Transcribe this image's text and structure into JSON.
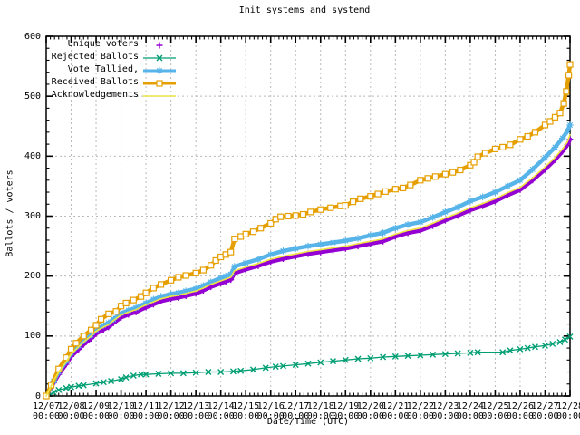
{
  "title": "Init systems and systemd",
  "y_axis": {
    "label": "Ballots / voters",
    "ticks": [
      0,
      100,
      200,
      300,
      400,
      500,
      600
    ],
    "min": 0,
    "max": 600
  },
  "x_axis": {
    "label": "Date/Time (UTC)",
    "tick_time_label": "00:00",
    "tick_dates": [
      "12/07",
      "12/08",
      "12/09",
      "12/10",
      "12/11",
      "12/12",
      "12/13",
      "12/14",
      "12/15",
      "12/16",
      "12/17",
      "12/18",
      "12/19",
      "12/20",
      "12/21",
      "12/22",
      "12/23",
      "12/24",
      "12/25",
      "12/26",
      "12/27",
      "12/28"
    ]
  },
  "colors": {
    "grid": "#b9b9b9",
    "border": "#000000",
    "background": "#ffffff"
  },
  "chart_data": {
    "type": "line",
    "title": "Init systems and systemd",
    "xlabel": "Date/Time (UTC)",
    "ylabel": "Ballots / voters",
    "ylim": [
      0,
      600
    ],
    "x_unit": "days since 12/07 00:00 UTC",
    "x_range_days": [
      0,
      21
    ],
    "grid": true,
    "legend_position": "top-left",
    "series": [
      {
        "name": "Unique voters",
        "color": "#9400d3",
        "marker": "plus",
        "legend_style": "points",
        "line_width": 4.5,
        "points": [
          [
            0,
            0
          ],
          [
            0.3,
            22
          ],
          [
            0.5,
            36
          ],
          [
            0.8,
            53
          ],
          [
            1,
            66
          ],
          [
            1.3,
            78
          ],
          [
            1.5,
            86
          ],
          [
            1.8,
            96
          ],
          [
            2,
            104
          ],
          [
            2.3,
            111
          ],
          [
            2.5,
            115
          ],
          [
            2.7,
            122
          ],
          [
            3,
            131
          ],
          [
            3.3,
            136
          ],
          [
            3.6,
            140
          ],
          [
            4,
            148
          ],
          [
            4.3,
            153
          ],
          [
            4.6,
            158
          ],
          [
            5,
            162
          ],
          [
            5.3,
            164
          ],
          [
            5.6,
            167
          ],
          [
            6,
            171
          ],
          [
            6.3,
            176
          ],
          [
            6.6,
            182
          ],
          [
            7,
            188
          ],
          [
            7.2,
            191
          ],
          [
            7.4,
            194
          ],
          [
            7.55,
            205
          ],
          [
            8,
            211
          ],
          [
            8.5,
            217
          ],
          [
            9,
            224
          ],
          [
            9.5,
            229
          ],
          [
            10,
            233
          ],
          [
            10.5,
            237
          ],
          [
            11,
            240
          ],
          [
            11.5,
            243
          ],
          [
            12,
            246
          ],
          [
            12.5,
            250
          ],
          [
            13,
            254
          ],
          [
            13.5,
            258
          ],
          [
            14,
            266
          ],
          [
            14.5,
            272
          ],
          [
            15,
            276
          ],
          [
            15.5,
            284
          ],
          [
            16,
            293
          ],
          [
            16.5,
            301
          ],
          [
            17,
            310
          ],
          [
            17.5,
            317
          ],
          [
            18,
            325
          ],
          [
            18.5,
            335
          ],
          [
            19,
            344
          ],
          [
            19.5,
            360
          ],
          [
            20,
            378
          ],
          [
            20.4,
            394
          ],
          [
            20.7,
            408
          ],
          [
            20.9,
            419
          ],
          [
            21,
            428
          ]
        ]
      },
      {
        "name": "Rejected Ballots",
        "color": "#009e73",
        "marker": "cross",
        "legend_style": "linespoints",
        "line_width": 1.3,
        "points": [
          [
            0,
            0
          ],
          [
            0.3,
            6
          ],
          [
            0.5,
            10
          ],
          [
            0.8,
            13
          ],
          [
            1,
            15
          ],
          [
            1.3,
            17
          ],
          [
            1.5,
            18
          ],
          [
            2,
            21
          ],
          [
            2.3,
            23
          ],
          [
            2.6,
            25
          ],
          [
            3,
            28
          ],
          [
            3.2,
            31
          ],
          [
            3.5,
            34
          ],
          [
            3.8,
            36
          ],
          [
            4,
            36
          ],
          [
            4.5,
            37
          ],
          [
            5,
            38
          ],
          [
            5.5,
            38
          ],
          [
            6,
            39
          ],
          [
            6.5,
            40
          ],
          [
            7,
            40
          ],
          [
            7.5,
            41
          ],
          [
            7.8,
            42
          ],
          [
            8.3,
            44
          ],
          [
            8.8,
            47
          ],
          [
            9.2,
            49
          ],
          [
            9.5,
            50
          ],
          [
            10,
            52
          ],
          [
            10.5,
            54
          ],
          [
            11,
            56
          ],
          [
            11.5,
            58
          ],
          [
            12,
            60
          ],
          [
            12.5,
            62
          ],
          [
            13,
            63
          ],
          [
            13.5,
            65
          ],
          [
            14,
            66
          ],
          [
            14.5,
            67
          ],
          [
            15,
            68
          ],
          [
            15.5,
            69
          ],
          [
            16,
            70
          ],
          [
            16.5,
            71
          ],
          [
            17,
            72
          ],
          [
            17.3,
            73
          ],
          [
            18.3,
            73
          ],
          [
            18.6,
            76
          ],
          [
            19,
            78
          ],
          [
            19.3,
            80
          ],
          [
            19.6,
            82
          ],
          [
            20,
            84
          ],
          [
            20.3,
            87
          ],
          [
            20.6,
            90
          ],
          [
            20.8,
            94
          ],
          [
            21,
            99
          ]
        ]
      },
      {
        "name": "Vote Tallied,",
        "color": "#56b4e9",
        "marker": "asterisk",
        "legend_style": "linespoints",
        "line_width": 4.5,
        "points": [
          [
            0,
            0
          ],
          [
            0.3,
            25
          ],
          [
            0.5,
            40
          ],
          [
            0.8,
            58
          ],
          [
            1,
            72
          ],
          [
            1.3,
            84
          ],
          [
            1.5,
            92
          ],
          [
            1.8,
            102
          ],
          [
            2,
            110
          ],
          [
            2.3,
            118
          ],
          [
            2.5,
            122
          ],
          [
            2.7,
            128
          ],
          [
            3,
            138
          ],
          [
            3.3,
            143
          ],
          [
            3.6,
            147
          ],
          [
            4,
            155
          ],
          [
            4.3,
            161
          ],
          [
            4.6,
            166
          ],
          [
            5,
            170
          ],
          [
            5.3,
            172
          ],
          [
            5.6,
            175
          ],
          [
            6,
            179
          ],
          [
            6.3,
            184
          ],
          [
            6.6,
            190
          ],
          [
            7,
            197
          ],
          [
            7.2,
            200
          ],
          [
            7.4,
            203
          ],
          [
            7.55,
            216
          ],
          [
            8,
            222
          ],
          [
            8.5,
            228
          ],
          [
            9,
            236
          ],
          [
            9.5,
            242
          ],
          [
            10,
            246
          ],
          [
            10.5,
            250
          ],
          [
            11,
            253
          ],
          [
            11.5,
            256
          ],
          [
            12,
            259
          ],
          [
            12.5,
            263
          ],
          [
            13,
            268
          ],
          [
            13.5,
            272
          ],
          [
            14,
            280
          ],
          [
            14.5,
            286
          ],
          [
            15,
            290
          ],
          [
            15.5,
            298
          ],
          [
            16,
            307
          ],
          [
            16.5,
            315
          ],
          [
            17,
            325
          ],
          [
            17.5,
            332
          ],
          [
            18,
            340
          ],
          [
            18.5,
            350
          ],
          [
            19,
            360
          ],
          [
            19.5,
            378
          ],
          [
            20,
            398
          ],
          [
            20.4,
            415
          ],
          [
            20.7,
            430
          ],
          [
            20.9,
            442
          ],
          [
            21,
            452
          ]
        ]
      },
      {
        "name": "Received Ballots",
        "color": "#e69f00",
        "marker": "square",
        "legend_style": "linespoints",
        "line_width": 4.5,
        "points": [
          [
            0,
            0
          ],
          [
            0.2,
            18
          ],
          [
            0.5,
            45
          ],
          [
            0.8,
            64
          ],
          [
            1,
            78
          ],
          [
            1.2,
            88
          ],
          [
            1.5,
            100
          ],
          [
            1.8,
            110
          ],
          [
            2,
            118
          ],
          [
            2.2,
            128
          ],
          [
            2.5,
            137
          ],
          [
            2.8,
            141
          ],
          [
            3,
            150
          ],
          [
            3.2,
            155
          ],
          [
            3.5,
            160
          ],
          [
            3.8,
            166
          ],
          [
            4,
            172
          ],
          [
            4.3,
            180
          ],
          [
            4.6,
            186
          ],
          [
            5,
            193
          ],
          [
            5.3,
            198
          ],
          [
            5.6,
            201
          ],
          [
            6,
            205
          ],
          [
            6.3,
            210
          ],
          [
            6.6,
            218
          ],
          [
            6.8,
            226
          ],
          [
            7,
            232
          ],
          [
            7.2,
            236
          ],
          [
            7.4,
            240
          ],
          [
            7.55,
            262
          ],
          [
            7.8,
            266
          ],
          [
            8,
            270
          ],
          [
            8.3,
            274
          ],
          [
            8.6,
            280
          ],
          [
            9,
            288
          ],
          [
            9.2,
            295
          ],
          [
            9.4,
            299
          ],
          [
            9.7,
            300
          ],
          [
            10,
            301
          ],
          [
            10.3,
            303
          ],
          [
            10.6,
            307
          ],
          [
            11,
            311
          ],
          [
            11.4,
            314
          ],
          [
            11.8,
            317
          ],
          [
            12,
            318
          ],
          [
            12.3,
            324
          ],
          [
            12.6,
            329
          ],
          [
            13,
            333
          ],
          [
            13.3,
            337
          ],
          [
            13.6,
            341
          ],
          [
            14,
            345
          ],
          [
            14.3,
            347
          ],
          [
            14.6,
            352
          ],
          [
            15,
            360
          ],
          [
            15.3,
            363
          ],
          [
            15.6,
            366
          ],
          [
            16,
            370
          ],
          [
            16.3,
            373
          ],
          [
            16.6,
            377
          ],
          [
            17,
            385
          ],
          [
            17.15,
            390
          ],
          [
            17.3,
            399
          ],
          [
            17.6,
            405
          ],
          [
            18,
            412
          ],
          [
            18.3,
            415
          ],
          [
            18.6,
            419
          ],
          [
            19,
            428
          ],
          [
            19.3,
            433
          ],
          [
            19.6,
            440
          ],
          [
            20,
            452
          ],
          [
            20.2,
            458
          ],
          [
            20.4,
            465
          ],
          [
            20.6,
            472
          ],
          [
            20.75,
            488
          ],
          [
            20.85,
            508
          ],
          [
            20.95,
            535
          ],
          [
            21,
            553
          ]
        ]
      },
      {
        "name": "Acknowledgements",
        "color": "#f0e442",
        "marker": "none",
        "legend_style": "lines",
        "line_width": 1.6,
        "points": [
          [
            0,
            0
          ],
          [
            0.3,
            26
          ],
          [
            0.5,
            40
          ],
          [
            0.8,
            57
          ],
          [
            1,
            70
          ],
          [
            1.3,
            82
          ],
          [
            1.5,
            90
          ],
          [
            1.8,
            100
          ],
          [
            2,
            108
          ],
          [
            2.3,
            115
          ],
          [
            2.5,
            119
          ],
          [
            2.7,
            126
          ],
          [
            3,
            135
          ],
          [
            3.3,
            140
          ],
          [
            3.6,
            144
          ],
          [
            4,
            152
          ],
          [
            4.3,
            157
          ],
          [
            4.6,
            162
          ],
          [
            5,
            166
          ],
          [
            5.3,
            168
          ],
          [
            5.6,
            171
          ],
          [
            6,
            175
          ],
          [
            6.3,
            180
          ],
          [
            6.6,
            186
          ],
          [
            7,
            192
          ],
          [
            7.2,
            195
          ],
          [
            7.4,
            198
          ],
          [
            7.55,
            209
          ],
          [
            8,
            215
          ],
          [
            8.5,
            221
          ],
          [
            9,
            228
          ],
          [
            9.5,
            233
          ],
          [
            10,
            237
          ],
          [
            10.5,
            241
          ],
          [
            11,
            244
          ],
          [
            11.5,
            247
          ],
          [
            12,
            250
          ],
          [
            12.5,
            254
          ],
          [
            13,
            258
          ],
          [
            13.5,
            262
          ],
          [
            14,
            270
          ],
          [
            14.5,
            276
          ],
          [
            15,
            280
          ],
          [
            15.5,
            288
          ],
          [
            16,
            297
          ],
          [
            16.5,
            305
          ],
          [
            17,
            314
          ],
          [
            17.5,
            321
          ],
          [
            18,
            329
          ],
          [
            18.5,
            339
          ],
          [
            19,
            348
          ],
          [
            19.5,
            364
          ],
          [
            20,
            382
          ],
          [
            20.4,
            398
          ],
          [
            20.7,
            412
          ],
          [
            20.9,
            424
          ],
          [
            21,
            436
          ]
        ]
      }
    ]
  }
}
